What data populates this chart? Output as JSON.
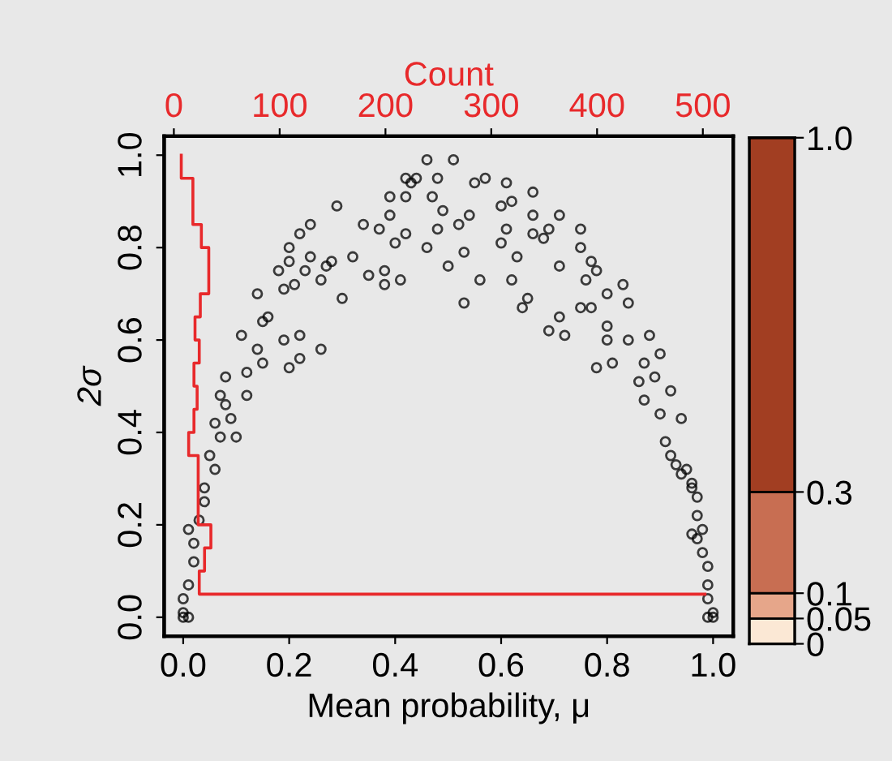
{
  "chart_data": [
    {
      "type": "scatter",
      "xlabel": "Mean probability, μ",
      "ylabel": "2σ",
      "x2label": "Count",
      "xlim": [
        -0.036,
        1.038
      ],
      "ylim": [
        -0.041,
        1.041
      ],
      "x2lim": [
        -9.2,
        528.7
      ],
      "xticks": [
        {
          "value": 0,
          "label": "0.0"
        },
        {
          "value": 0.2,
          "label": "0.2"
        },
        {
          "value": 0.4,
          "label": "0.4"
        },
        {
          "value": 0.6,
          "label": "0.6"
        },
        {
          "value": 0.8,
          "label": "0.8"
        },
        {
          "value": 1,
          "label": "1.0"
        }
      ],
      "yticks": [
        {
          "value": 0,
          "label": "0.0"
        },
        {
          "value": 0.2,
          "label": "0.2"
        },
        {
          "value": 0.4,
          "label": "0.4"
        },
        {
          "value": 0.6,
          "label": "0.6"
        },
        {
          "value": 0.8,
          "label": "0.8"
        },
        {
          "value": 1,
          "label": "1.0"
        }
      ],
      "x2ticks": [
        0,
        100,
        200,
        300,
        400,
        500
      ],
      "grid": false,
      "series": [
        {
          "type": "scatter",
          "color": "#000000",
          "marker": "circle",
          "x": [
            0.46,
            0.51,
            0.42,
            0.44,
            0.48,
            0.43,
            0.55,
            0.57,
            0.61,
            0.39,
            0.42,
            0.47,
            0.49,
            0.54,
            0.6,
            0.62,
            0.66,
            0.66,
            0.71,
            0.39,
            0.29,
            0.34,
            0.37,
            0.42,
            0.48,
            0.52,
            0.61,
            0.66,
            0.69,
            0.75,
            0.53,
            0.46,
            0.4,
            0.32,
            0.28,
            0.24,
            0.22,
            0.2,
            0.18,
            0.24,
            0.27,
            0.2,
            0.23,
            0.14,
            0.19,
            0.21,
            0.26,
            0.3,
            0.35,
            0.38,
            0.38,
            0.41,
            0.5,
            0.56,
            0.62,
            0.53,
            0.65,
            0.64,
            0.6,
            0.63,
            0.68,
            0.71,
            0.75,
            0.77,
            0.78,
            0.76,
            0.75,
            0.77,
            0.69,
            0.71,
            0.72,
            0.8,
            0.83,
            0.84,
            0.8,
            0.8,
            0.78,
            0.81,
            0.84,
            0.88,
            0.9,
            0.87,
            0.86,
            0.89,
            0.92,
            0.87,
            0.94,
            0.9,
            0.91,
            0.92,
            0.93,
            0.95,
            0.96,
            0.97,
            0.97,
            0.98,
            0.96,
            0.98,
            0.99,
            0.99,
            0.99,
            1.0,
            1.0,
            0.99,
            0.96,
            0.94,
            0.97,
            0.11,
            0.15,
            0.16,
            0.14,
            0.15,
            0.19,
            0.22,
            0.2,
            0.22,
            0.26,
            0.08,
            0.07,
            0.12,
            0.12,
            0.08,
            0.09,
            0.06,
            0.07,
            0.1,
            0.05,
            0.06,
            0.04,
            0.04,
            0.03,
            0.01,
            0.02,
            0.02,
            0.01,
            0.0,
            0.0,
            0.0,
            0.01
          ],
          "values": [
            0.99,
            0.99,
            0.95,
            0.95,
            0.95,
            0.94,
            0.94,
            0.95,
            0.94,
            0.91,
            0.91,
            0.91,
            0.88,
            0.87,
            0.89,
            0.9,
            0.92,
            0.87,
            0.87,
            0.87,
            0.89,
            0.85,
            0.84,
            0.83,
            0.84,
            0.85,
            0.84,
            0.83,
            0.84,
            0.84,
            0.79,
            0.8,
            0.81,
            0.78,
            0.77,
            0.85,
            0.83,
            0.8,
            0.75,
            0.78,
            0.76,
            0.77,
            0.75,
            0.7,
            0.71,
            0.72,
            0.73,
            0.69,
            0.74,
            0.75,
            0.72,
            0.73,
            0.76,
            0.73,
            0.73,
            0.68,
            0.69,
            0.67,
            0.81,
            0.78,
            0.82,
            0.76,
            0.8,
            0.77,
            0.75,
            0.73,
            0.67,
            0.67,
            0.62,
            0.65,
            0.61,
            0.7,
            0.72,
            0.68,
            0.63,
            0.6,
            0.54,
            0.55,
            0.6,
            0.61,
            0.57,
            0.55,
            0.51,
            0.52,
            0.49,
            0.47,
            0.43,
            0.44,
            0.38,
            0.35,
            0.33,
            0.32,
            0.29,
            0.26,
            0.22,
            0.19,
            0.18,
            0.14,
            0.11,
            0.07,
            0.04,
            0.01,
            0.0,
            0.0,
            0.28,
            0.31,
            0.17,
            0.61,
            0.64,
            0.65,
            0.58,
            0.55,
            0.6,
            0.61,
            0.54,
            0.56,
            0.58,
            0.52,
            0.48,
            0.53,
            0.48,
            0.46,
            0.43,
            0.42,
            0.39,
            0.39,
            0.35,
            0.32,
            0.28,
            0.25,
            0.21,
            0.19,
            0.16,
            0.12,
            0.07,
            0.04,
            0.01,
            0.0,
            0.0
          ]
        },
        {
          "type": "line",
          "axis": "x2",
          "color": "#e8292b",
          "marker": "none",
          "x": [
            7,
            7,
            18,
            18,
            26,
            26,
            33,
            33,
            25,
            25,
            20,
            20,
            24,
            24,
            19,
            19,
            22,
            22,
            19,
            19,
            14,
            14,
            23,
            23,
            35,
            35,
            29,
            29,
            24,
            24,
            502
          ],
          "values": [
            1.0,
            0.95,
            0.95,
            0.85,
            0.85,
            0.8,
            0.8,
            0.7,
            0.7,
            0.65,
            0.65,
            0.6,
            0.6,
            0.55,
            0.55,
            0.5,
            0.5,
            0.45,
            0.45,
            0.4,
            0.4,
            0.35,
            0.35,
            0.2,
            0.2,
            0.15,
            0.15,
            0.1,
            0.1,
            0.05,
            0.05
          ]
        }
      ]
    },
    {
      "type": "bar",
      "stacked": true,
      "categories": [
        null
      ],
      "tick_labels": "y",
      "ylim": [
        0,
        1
      ],
      "yticks": [
        0,
        0.05,
        0.1,
        0.3,
        {
          "value": 1,
          "label": "1.0"
        }
      ],
      "series": [
        {
          "color": "#fbe8d5",
          "values": [
            0.05
          ]
        },
        {
          "color": "#e6a68a",
          "values": [
            0.05
          ]
        },
        {
          "color": "#c86e52",
          "values": [
            0.2
          ]
        },
        {
          "color": "#a23e22",
          "values": [
            0.7
          ]
        }
      ]
    }
  ]
}
